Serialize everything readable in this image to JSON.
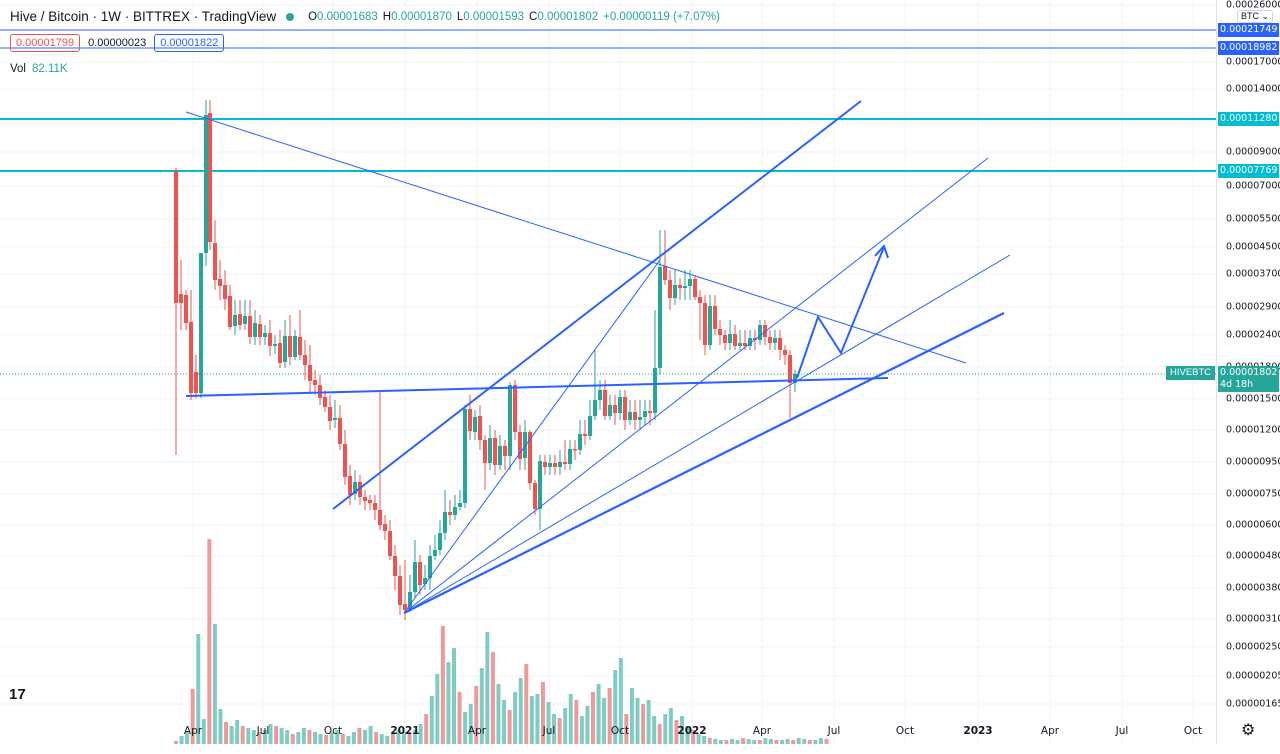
{
  "header": {
    "title": "Hive / Bitcoin · 1W · BITTREX · TradingView",
    "ohlc": [
      {
        "key": "O",
        "value": "0.00001683"
      },
      {
        "key": "H",
        "value": "0.00001870"
      },
      {
        "key": "L",
        "value": "0.00001593"
      },
      {
        "key": "C",
        "value": "0.00001802"
      }
    ],
    "change": "+0.00000119 (+7.07%)",
    "status_color": "#26a69a"
  },
  "price_boxes": {
    "sell": "0.00001799",
    "spread": "0.00000023",
    "buy": "0.00001822"
  },
  "volume": {
    "label": "Vol",
    "value": "82.11K"
  },
  "currency_select": "BTC",
  "y_axis_labels": [
    "0.00026000",
    "0.00017000",
    "0.00014000",
    "0.00009000",
    "0.00007000",
    "0.00005500",
    "0.00004500",
    "0.00003700",
    "0.00002900",
    "0.00002400",
    "0.00001800",
    "0.00001500",
    "0.00001200",
    "0.00000950",
    "0.00000750",
    "0.00000600",
    "0.00000480",
    "0.00000380",
    "0.00000310",
    "0.00000250",
    "0.00000205",
    "0.00000165"
  ],
  "level_labels": [
    {
      "value": "0.00021749",
      "color": "#2962ff"
    },
    {
      "value": "0.00018982",
      "color": "#2962ff"
    },
    {
      "value": "0.00011280",
      "color": "#00bcd4"
    },
    {
      "value": "0.00007769",
      "color": "#00bcd4"
    }
  ],
  "last_price": {
    "symbol": "HIVEBTC",
    "value": "0.00001802",
    "countdown": "4d 18h"
  },
  "x_axis_labels": [
    {
      "label": "Apr",
      "bold": false
    },
    {
      "label": "Jul",
      "bold": false
    },
    {
      "label": "Oct",
      "bold": false
    },
    {
      "label": "2021",
      "bold": true
    },
    {
      "label": "Apr",
      "bold": false
    },
    {
      "label": "Jul",
      "bold": false
    },
    {
      "label": "Oct",
      "bold": false
    },
    {
      "label": "2022",
      "bold": true
    },
    {
      "label": "Apr",
      "bold": false
    },
    {
      "label": "Jul",
      "bold": false
    },
    {
      "label": "Oct",
      "bold": false
    },
    {
      "label": "2023",
      "bold": true
    },
    {
      "label": "Apr",
      "bold": false
    },
    {
      "label": "Jul",
      "bold": false
    },
    {
      "label": "Oct",
      "bold": false
    }
  ],
  "colors": {
    "up": "#26a69a",
    "down": "#ef5350",
    "trend": "#2962ff",
    "level": "#00bcd4"
  }
}
